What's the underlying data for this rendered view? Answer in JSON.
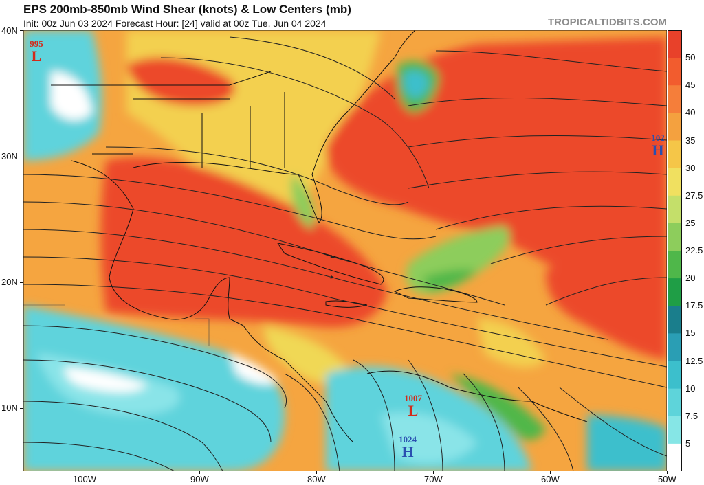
{
  "header": {
    "title": "EPS 200mb-850mb Wind Shear (knots) & Low Centers (mb)",
    "subtitle": "Init: 00z Jun 03 2024   Forecast Hour: [24]   valid at 00z Tue, Jun 04 2024",
    "brand": "TROPICALTIDBITS.COM"
  },
  "axes": {
    "lat_labels": [
      "40N",
      "30N",
      "20N",
      "10N"
    ],
    "lon_labels": [
      "100W",
      "90W",
      "80W",
      "70W",
      "60W",
      "50W"
    ]
  },
  "colorbar": {
    "labels": [
      "50",
      "45",
      "40",
      "35",
      "30",
      "27.5",
      "25",
      "22.5",
      "20",
      "17.5",
      "15",
      "12.5",
      "10",
      "7.5",
      "5"
    ],
    "colors": [
      "#e8412a",
      "#f25c2e",
      "#f57e3a",
      "#f4a13f",
      "#f5c648",
      "#f0e060",
      "#c4df6a",
      "#8dcd5c",
      "#4fb74a",
      "#1f9e46",
      "#1a7e8c",
      "#2a9eb4",
      "#3cbfcc",
      "#5ed4da",
      "#86e6e6",
      "#ffffff"
    ]
  },
  "pressure_centers": [
    {
      "type": "L",
      "value": "995",
      "color": "#d22a1a"
    },
    {
      "type": "H",
      "value": "102",
      "color": "#2a4fb0"
    },
    {
      "type": "L",
      "value": "1007",
      "color": "#d22a1a"
    },
    {
      "type": "H",
      "value": "1024",
      "color": "#2a4fb0"
    }
  ]
}
